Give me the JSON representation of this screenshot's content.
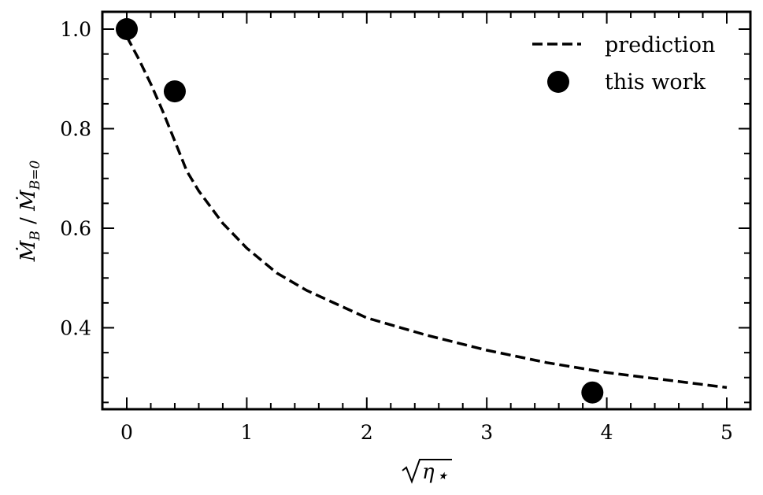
{
  "chart_data": {
    "type": "line",
    "title": "",
    "xlabel": "√η⋆",
    "ylabel": "Ṁ_B / Ṁ_{B=0}",
    "xlim": [
      -0.2,
      5.2
    ],
    "ylim": [
      0.237,
      1.037
    ],
    "xticks": [
      0,
      1,
      2,
      3,
      4,
      5
    ],
    "xtick_labels": [
      "0",
      "1",
      "2",
      "3",
      "4",
      "5"
    ],
    "yticks": [
      0.4,
      0.6,
      0.8,
      1.0
    ],
    "ytick_labels": [
      "0.4",
      "0.6",
      "0.8",
      "1.0"
    ],
    "grid": false,
    "legend_position": "upper right",
    "series": [
      {
        "name": "prediction",
        "style": "dashed-line",
        "color": "#000000",
        "x": [
          0,
          0.1,
          0.2,
          0.3,
          0.4,
          0.5,
          0.6,
          0.8,
          1.0,
          1.25,
          1.5,
          2.0,
          2.5,
          3.0,
          3.5,
          4.0,
          4.5,
          5.0
        ],
        "values": [
          0.985,
          0.94,
          0.89,
          0.835,
          0.775,
          0.715,
          0.675,
          0.61,
          0.56,
          0.51,
          0.475,
          0.42,
          0.385,
          0.355,
          0.33,
          0.31,
          0.295,
          0.28
        ]
      },
      {
        "name": "this work",
        "style": "markers",
        "color": "#000000",
        "x": [
          0.0,
          0.4,
          3.88
        ],
        "values": [
          1.0,
          0.875,
          0.27
        ]
      }
    ]
  },
  "legend": {
    "items": [
      {
        "label": "prediction",
        "marker": "dashed-line"
      },
      {
        "label": "this work",
        "marker": "filled-circle"
      }
    ]
  },
  "axes": {
    "xlabel_main": "η",
    "xlabel_sub": "⋆",
    "ylabel_main_1": "Ṁ",
    "ylabel_sub_1": "B",
    "ylabel_sep": " / ",
    "ylabel_main_2": "Ṁ",
    "ylabel_sub_2": "B=0"
  }
}
